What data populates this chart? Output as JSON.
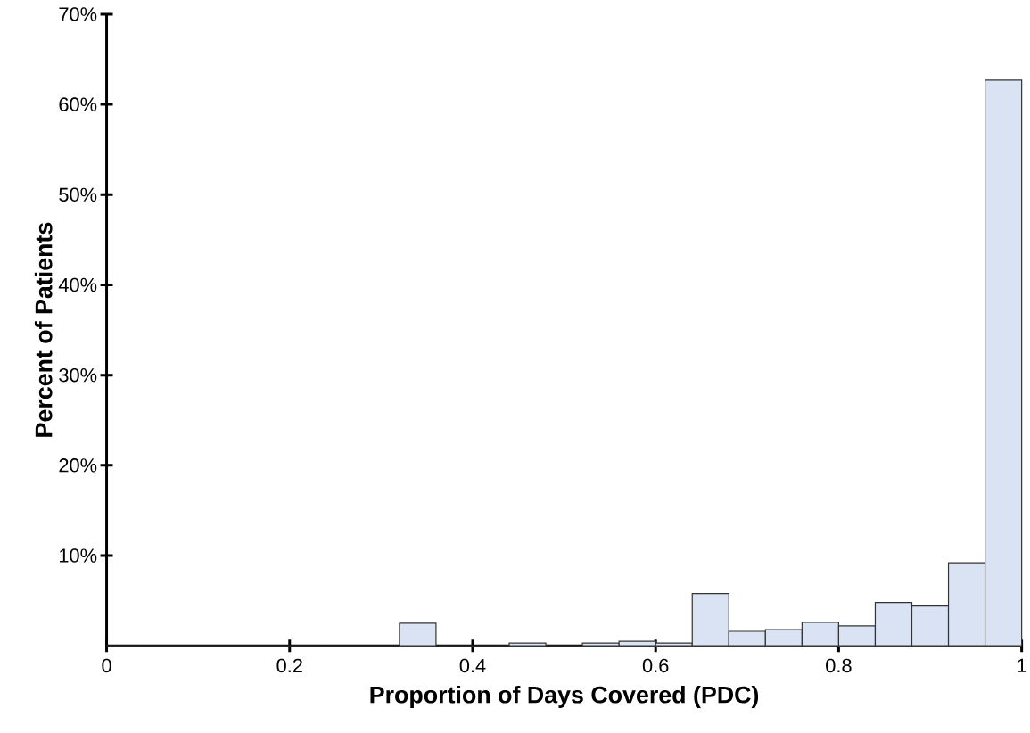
{
  "chart_data": {
    "type": "histogram",
    "xlabel": "Proportion of Days Covered (PDC)",
    "ylabel": "Percent of Patients",
    "bins": [
      0,
      0.04,
      0.08,
      0.12,
      0.16,
      0.2,
      0.24,
      0.28,
      0.32,
      0.36,
      0.4,
      0.44,
      0.48,
      0.52,
      0.56,
      0.6,
      0.64,
      0.68,
      0.72,
      0.76,
      0.8,
      0.84,
      0.88,
      0.92,
      0.96,
      1
    ],
    "values": [
      0,
      0,
      0,
      0,
      0,
      0,
      0,
      0,
      2.5,
      0,
      0,
      0.3,
      0,
      0.3,
      0.5,
      0.3,
      5.8,
      1.6,
      1.8,
      2.6,
      2.2,
      4.8,
      4.4,
      9.2,
      62.7
    ],
    "color": "#dae3f3",
    "xlim": [
      0,
      1
    ],
    "ylim": [
      0,
      70
    ],
    "xticks": [
      0,
      0.2,
      0.4,
      0.6,
      0.8,
      1
    ],
    "yticks": [
      {
        "value": 10,
        "label": "10%"
      },
      {
        "value": 20,
        "label": "20%"
      },
      {
        "value": 30,
        "label": "30%"
      },
      {
        "value": 40,
        "label": "40%"
      },
      {
        "value": 50,
        "label": "50%"
      },
      {
        "value": 60,
        "label": "60%"
      },
      {
        "value": 70,
        "label": "70%"
      }
    ]
  }
}
